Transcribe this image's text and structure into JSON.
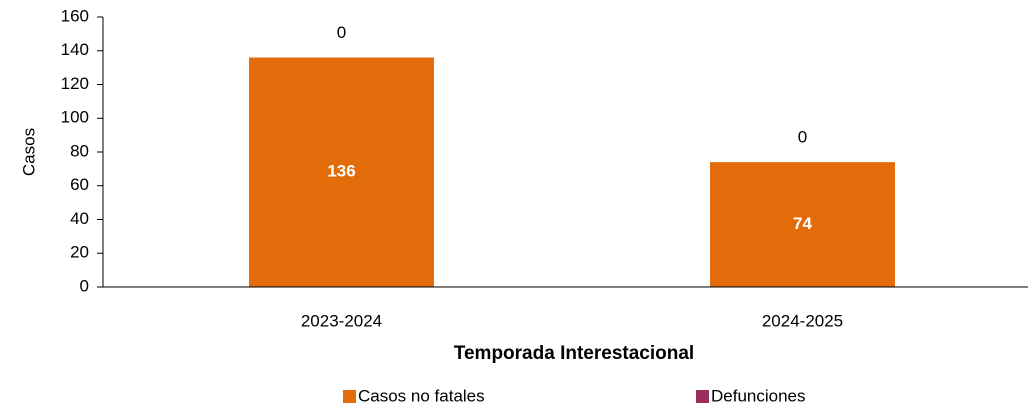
{
  "chart_data": {
    "type": "stacked_bar",
    "categories": [
      "2023-2024",
      "2024-2025"
    ],
    "series": [
      {
        "name": "Casos no fatales",
        "color": "#e36c0a",
        "values": [
          136,
          74
        ]
      },
      {
        "name": "Defunciones",
        "color": "#9b2d5c",
        "values": [
          0,
          0
        ]
      }
    ],
    "ylim": [
      0,
      160
    ],
    "yticks": [
      0,
      20,
      40,
      60,
      80,
      100,
      120,
      140,
      160
    ],
    "xlabel": "Temporada Interestacional",
    "ylabel": "Casos",
    "legend": "bottom",
    "grid": false
  }
}
